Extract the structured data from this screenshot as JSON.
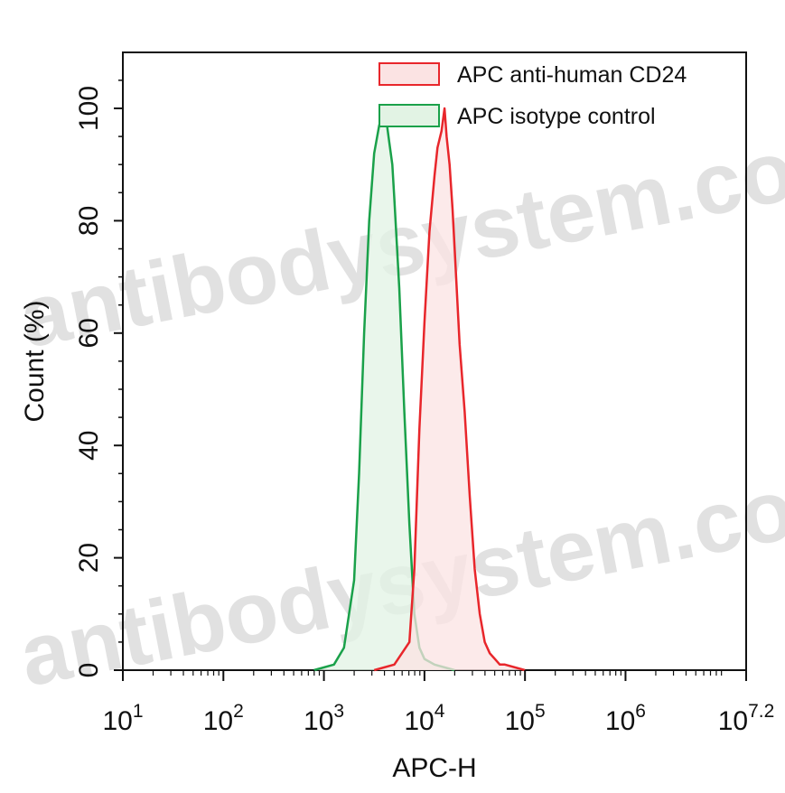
{
  "watermark": "antibodysystem.com",
  "chart_data": {
    "type": "area",
    "xlabel": "APC-H",
    "ylabel": "Count (%)",
    "xscale": "log10",
    "xlim_exponent": [
      1,
      7.2
    ],
    "ylim": [
      0,
      100
    ],
    "x_ticks": [
      {
        "base": "10",
        "exp": "1",
        "value_exp": 1
      },
      {
        "base": "10",
        "exp": "2",
        "value_exp": 2
      },
      {
        "base": "10",
        "exp": "3",
        "value_exp": 3
      },
      {
        "base": "10",
        "exp": "4",
        "value_exp": 4
      },
      {
        "base": "10",
        "exp": "5",
        "value_exp": 5
      },
      {
        "base": "10",
        "exp": "6",
        "value_exp": 6
      },
      {
        "base": "10",
        "exp": "7.2",
        "value_exp": 7.2
      }
    ],
    "y_ticks": [
      "0",
      "20",
      "40",
      "60",
      "80",
      "100"
    ],
    "legend_position": "top-right",
    "series": [
      {
        "name": "APC anti-human CD24",
        "stroke": "#e8262b",
        "fill": "#fbe3e3",
        "x_log10": [
          3.5,
          3.7,
          3.85,
          3.9,
          3.95,
          4.0,
          4.05,
          4.1,
          4.13,
          4.17,
          4.2,
          4.22,
          4.25,
          4.28,
          4.3,
          4.35,
          4.4,
          4.45,
          4.5,
          4.55,
          4.6,
          4.65,
          4.7,
          4.75,
          4.8,
          5.0
        ],
        "values": [
          0,
          1,
          5,
          18,
          43,
          62,
          78,
          88,
          93,
          96,
          100,
          95,
          90,
          82,
          75,
          58,
          46,
          31,
          18,
          10,
          5,
          3,
          2,
          1,
          1,
          0
        ]
      },
      {
        "name": "APC isotype control",
        "stroke": "#1aa14a",
        "fill": "#e2f3e4",
        "x_log10": [
          2.9,
          3.1,
          3.2,
          3.3,
          3.35,
          3.4,
          3.45,
          3.5,
          3.55,
          3.6,
          3.62,
          3.65,
          3.68,
          3.7,
          3.75,
          3.8,
          3.85,
          3.9,
          3.95,
          4.0,
          4.1,
          4.3
        ],
        "values": [
          0,
          1,
          4,
          16,
          35,
          60,
          80,
          92,
          97,
          100,
          98,
          94,
          90,
          84,
          68,
          46,
          26,
          10,
          4,
          2,
          1,
          0
        ]
      }
    ]
  }
}
